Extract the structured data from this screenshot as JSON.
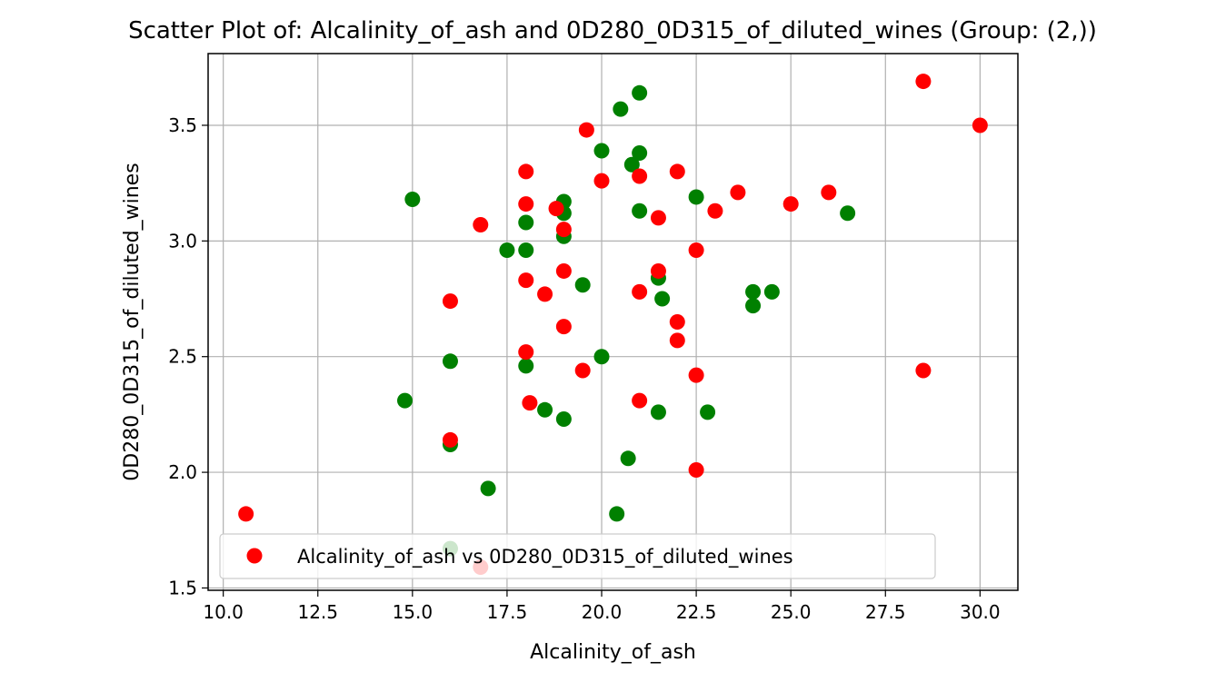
{
  "chart_data": {
    "type": "scatter",
    "title": "Scatter Plot of: Alcalinity_of_ash and 0D280_0D315_of_diluted_wines (Group: (2,))",
    "xlabel": "Alcalinity_of_ash",
    "ylabel": "0D280_0D315_of_diluted_wines",
    "xlim": [
      9.6,
      31.0
    ],
    "ylim": [
      1.49,
      3.81
    ],
    "xticks": [
      10.0,
      12.5,
      15.0,
      17.5,
      20.0,
      22.5,
      25.0,
      27.5,
      30.0
    ],
    "xtick_labels": [
      "10.0",
      "12.5",
      "15.0",
      "17.5",
      "20.0",
      "22.5",
      "25.0",
      "27.5",
      "30.0"
    ],
    "yticks": [
      1.5,
      2.0,
      2.5,
      3.0,
      3.5
    ],
    "ytick_labels": [
      "1.5",
      "2.0",
      "2.5",
      "3.0",
      "3.5"
    ],
    "grid": true,
    "legend": {
      "placement": "lower-left",
      "label": "Alcalinity_of_ash vs 0D280_0D315_of_diluted_wines",
      "color": "#ff0000"
    },
    "series": [
      {
        "color": "#008000",
        "points": [
          [
            15.0,
            3.18
          ],
          [
            14.8,
            2.31
          ],
          [
            16.0,
            2.48
          ],
          [
            16.0,
            2.12
          ],
          [
            16.0,
            1.67
          ],
          [
            17.0,
            1.93
          ],
          [
            17.5,
            2.96
          ],
          [
            18.0,
            3.08
          ],
          [
            18.0,
            2.96
          ],
          [
            18.0,
            2.46
          ],
          [
            18.5,
            2.27
          ],
          [
            19.0,
            3.17
          ],
          [
            19.0,
            3.12
          ],
          [
            19.0,
            3.02
          ],
          [
            19.0,
            2.23
          ],
          [
            19.5,
            2.81
          ],
          [
            20.0,
            3.39
          ],
          [
            20.0,
            2.5
          ],
          [
            20.4,
            1.82
          ],
          [
            20.5,
            3.57
          ],
          [
            20.7,
            2.06
          ],
          [
            20.8,
            3.33
          ],
          [
            21.0,
            3.64
          ],
          [
            21.0,
            3.38
          ],
          [
            21.0,
            3.13
          ],
          [
            21.5,
            2.84
          ],
          [
            21.5,
            2.26
          ],
          [
            21.6,
            2.75
          ],
          [
            22.5,
            3.19
          ],
          [
            22.8,
            2.26
          ],
          [
            24.0,
            2.78
          ],
          [
            24.0,
            2.72
          ],
          [
            24.5,
            2.78
          ],
          [
            26.5,
            3.12
          ]
        ]
      },
      {
        "color": "#ff0000",
        "points": [
          [
            10.6,
            1.82
          ],
          [
            16.0,
            2.74
          ],
          [
            16.0,
            2.14
          ],
          [
            16.8,
            3.07
          ],
          [
            16.8,
            1.59
          ],
          [
            18.0,
            3.3
          ],
          [
            18.0,
            3.16
          ],
          [
            18.0,
            2.83
          ],
          [
            18.0,
            2.52
          ],
          [
            18.1,
            2.3
          ],
          [
            18.5,
            2.77
          ],
          [
            18.8,
            3.14
          ],
          [
            19.0,
            3.05
          ],
          [
            19.0,
            2.87
          ],
          [
            19.0,
            2.63
          ],
          [
            19.5,
            2.44
          ],
          [
            19.6,
            3.48
          ],
          [
            20.0,
            3.26
          ],
          [
            21.0,
            3.28
          ],
          [
            21.0,
            2.78
          ],
          [
            21.0,
            2.31
          ],
          [
            21.5,
            3.1
          ],
          [
            21.5,
            2.87
          ],
          [
            22.0,
            3.3
          ],
          [
            22.0,
            2.65
          ],
          [
            22.0,
            2.57
          ],
          [
            22.5,
            2.96
          ],
          [
            22.5,
            2.42
          ],
          [
            22.5,
            2.01
          ],
          [
            23.0,
            3.13
          ],
          [
            23.6,
            3.21
          ],
          [
            25.0,
            3.16
          ],
          [
            26.0,
            3.21
          ],
          [
            28.5,
            3.69
          ],
          [
            28.5,
            2.44
          ],
          [
            30.0,
            3.5
          ]
        ]
      }
    ]
  }
}
